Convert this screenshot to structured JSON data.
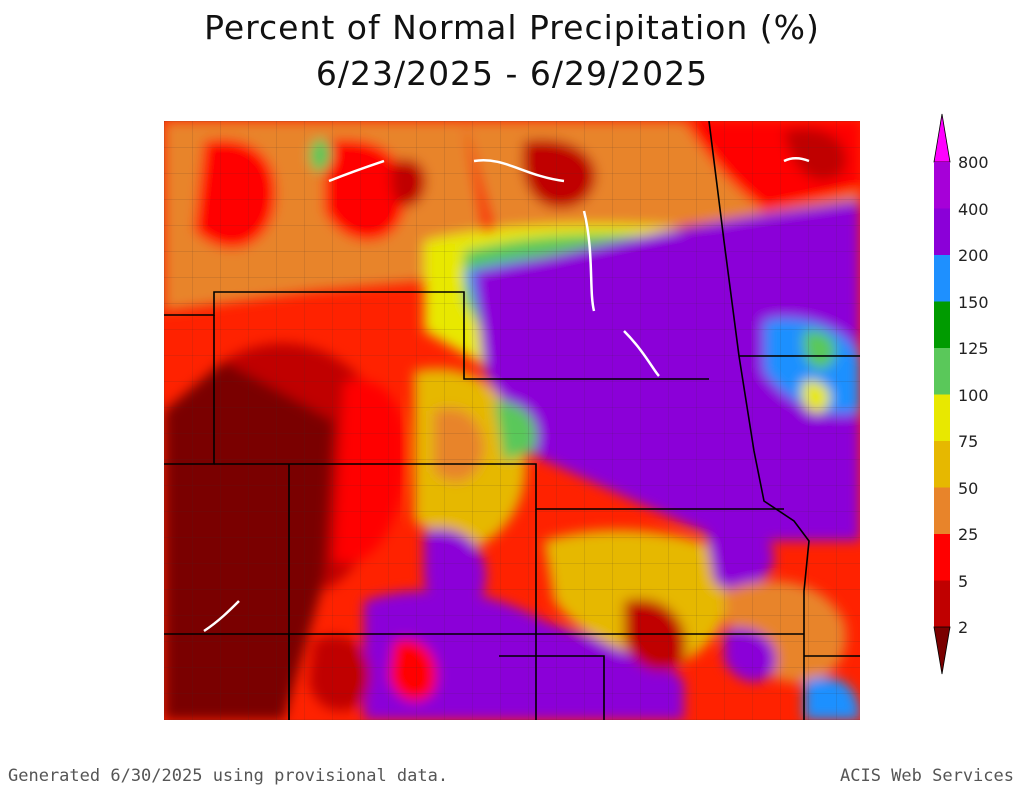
{
  "title_line1": "Percent of Normal Precipitation (%)",
  "title_line2": "6/23/2025 - 6/29/2025",
  "legend": {
    "breaks": [
      "800",
      "400",
      "200",
      "150",
      "125",
      "100",
      "75",
      "50",
      "25",
      "5",
      "2"
    ],
    "colors": {
      "top_arrow": "#ff00ff",
      "800": "#a600d8",
      "400": "#8b00d8",
      "200": "#1e90ff",
      "150": "#009b00",
      "125": "#5ac85a",
      "100": "#e8e800",
      "75": "#e6b800",
      "50": "#e8842a",
      "25": "#ff0000",
      "5": "#c00000",
      "bottom_arrow": "#7a0000"
    }
  },
  "footer": {
    "left": "Generated 6/30/2025 using provisional data.",
    "right": "ACIS Web Services"
  }
}
